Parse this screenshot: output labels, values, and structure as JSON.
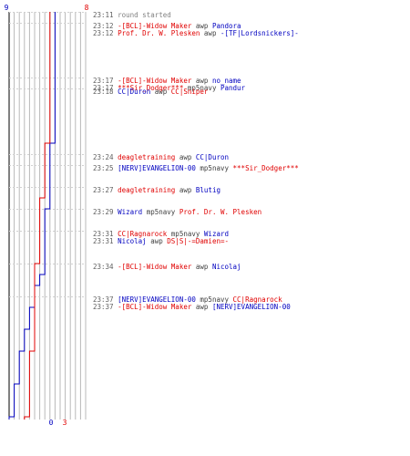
{
  "chart_data": {
    "type": "line",
    "top_labels": {
      "left": "9",
      "right": "8"
    },
    "bottom_labels": {
      "left": "0",
      "right": "3"
    },
    "colors": {
      "team_a": "#0000c0",
      "team_b": "#e00000",
      "grid": "#b8b8b8",
      "axis": "#000000",
      "time": "#606060"
    },
    "series": [
      {
        "team": "a",
        "steps": [
          [
            0,
            9
          ],
          [
            12,
            8
          ],
          [
            18,
            7
          ],
          [
            24,
            6
          ],
          [
            25,
            5
          ],
          [
            27,
            4
          ],
          [
            29,
            3
          ],
          [
            31,
            2
          ],
          [
            34,
            1
          ],
          [
            37,
            0
          ]
        ]
      },
      {
        "team": "b",
        "steps": [
          [
            0,
            8
          ],
          [
            12,
            7
          ],
          [
            17,
            6
          ],
          [
            23,
            5
          ],
          [
            31,
            4
          ],
          [
            37,
            3
          ]
        ]
      }
    ],
    "events": [
      {
        "time": "23:11",
        "min": 0,
        "parts": [
          {
            "text": "round started",
            "c": "sys"
          }
        ]
      },
      {
        "time": "23:12",
        "min": 1,
        "parts": [
          {
            "text": "-[BCL]-Widow Maker",
            "c": "b"
          },
          {
            "text": "awp",
            "c": "w"
          },
          {
            "text": "Pandora",
            "c": "a"
          }
        ]
      },
      {
        "time": "23:12",
        "min": 1,
        "parts": [
          {
            "text": "Prof. Dr. W. Plesken",
            "c": "b"
          },
          {
            "text": "awp",
            "c": "w"
          },
          {
            "text": "-[TF|Lordsnickers]-",
            "c": "a"
          }
        ]
      },
      {
        "time": "23:17",
        "min": 6,
        "parts": [
          {
            "text": "-[BCL]-Widow Maker",
            "c": "b"
          },
          {
            "text": "awp",
            "c": "w"
          },
          {
            "text": "no_name",
            "c": "a"
          }
        ]
      },
      {
        "time": "23:17",
        "min": 6,
        "parts": [
          {
            "text": "***Sir_Dodger***",
            "c": "b"
          },
          {
            "text": "mp5navy",
            "c": "w"
          },
          {
            "text": "Pandur",
            "c": "a"
          }
        ]
      },
      {
        "time": "23:18",
        "min": 7,
        "parts": [
          {
            "text": "CC|Duron",
            "c": "a"
          },
          {
            "text": "awp",
            "c": "w"
          },
          {
            "text": "CC|Sniper",
            "c": "b"
          }
        ]
      },
      {
        "time": "23:24",
        "min": 13,
        "parts": [
          {
            "text": "deagletraining",
            "c": "b"
          },
          {
            "text": "awp",
            "c": "w"
          },
          {
            "text": "CC|Duron",
            "c": "a"
          }
        ]
      },
      {
        "time": "23:25",
        "min": 14,
        "parts": [
          {
            "text": "[NERV]EVANGELION-00",
            "c": "a"
          },
          {
            "text": "mp5navy",
            "c": "w"
          },
          {
            "text": "***Sir_Dodger***",
            "c": "b"
          }
        ]
      },
      {
        "time": "23:27",
        "min": 16,
        "parts": [
          {
            "text": "deagletraining",
            "c": "b"
          },
          {
            "text": "awp",
            "c": "w"
          },
          {
            "text": "Blutig",
            "c": "a"
          }
        ]
      },
      {
        "time": "23:29",
        "min": 18,
        "parts": [
          {
            "text": "Wizard",
            "c": "a"
          },
          {
            "text": "mp5navy",
            "c": "w"
          },
          {
            "text": "Prof. Dr. W. Plesken",
            "c": "b"
          }
        ]
      },
      {
        "time": "23:31",
        "min": 20,
        "parts": [
          {
            "text": "CC|Ragnarock",
            "c": "b"
          },
          {
            "text": "mp5navy",
            "c": "w"
          },
          {
            "text": "Wizard",
            "c": "a"
          }
        ]
      },
      {
        "time": "23:31",
        "min": 20,
        "parts": [
          {
            "text": "Nicolaj",
            "c": "a"
          },
          {
            "text": "awp",
            "c": "w"
          },
          {
            "text": "DS|S|-=Damien=-",
            "c": "b"
          }
        ]
      },
      {
        "time": "23:34",
        "min": 23,
        "parts": [
          {
            "text": "-[BCL]-Widow Maker",
            "c": "b"
          },
          {
            "text": "awp",
            "c": "w"
          },
          {
            "text": "Nicolaj",
            "c": "a"
          }
        ]
      },
      {
        "time": "23:37",
        "min": 26,
        "parts": [
          {
            "text": "[NERV]EVANGELION-00",
            "c": "a"
          },
          {
            "text": "mp5navy",
            "c": "w"
          },
          {
            "text": "CC|Ragnarock",
            "c": "b"
          }
        ]
      },
      {
        "time": "23:37",
        "min": 26,
        "parts": [
          {
            "text": "-[BCL]-Widow Maker",
            "c": "b"
          },
          {
            "text": "awp",
            "c": "w"
          },
          {
            "text": "[NERV]EVANGELION-00",
            "c": "a"
          }
        ]
      }
    ]
  }
}
